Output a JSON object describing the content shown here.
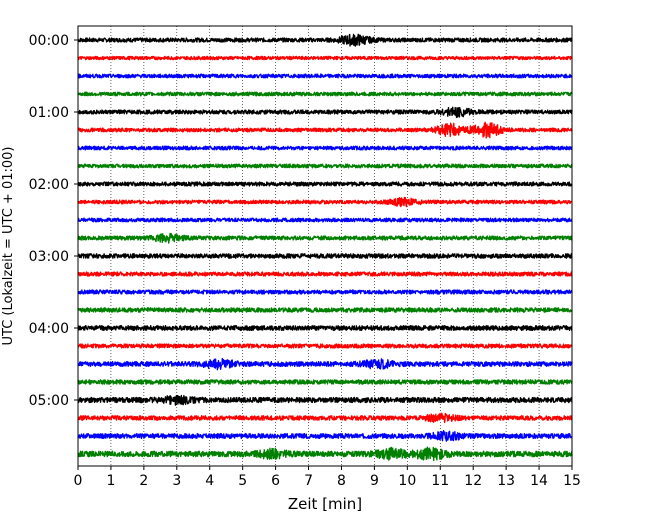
{
  "chart_data": {
    "type": "line",
    "title": "",
    "xlabel": "Zeit  [min]",
    "ylabel": "UTC (Lokalzeit = UTC + 01:00)",
    "xlim": [
      0,
      15
    ],
    "x_ticks": [
      "0",
      "1",
      "2",
      "3",
      "4",
      "5",
      "6",
      "7",
      "8",
      "9",
      "10",
      "11",
      "12",
      "13",
      "14",
      "15"
    ],
    "y_tick_labels": [
      "00:00",
      "01:00",
      "02:00",
      "03:00",
      "04:00",
      "05:00"
    ],
    "grid": "vertical dotted",
    "colors": [
      "#000000",
      "#ff0000",
      "#0000ff",
      "#008000"
    ],
    "series": [
      {
        "row_time": "00:00",
        "color": "#000000",
        "amplitude": 0.22,
        "bursts": [
          {
            "t": 8.4,
            "a": 0.5
          }
        ]
      },
      {
        "row_time": "00:15",
        "color": "#ff0000",
        "amplitude": 0.18,
        "bursts": []
      },
      {
        "row_time": "00:30",
        "color": "#0000ff",
        "amplitude": 0.2,
        "bursts": []
      },
      {
        "row_time": "00:45",
        "color": "#008000",
        "amplitude": 0.2,
        "bursts": []
      },
      {
        "row_time": "01:00",
        "color": "#000000",
        "amplitude": 0.22,
        "bursts": [
          {
            "t": 11.5,
            "a": 0.4
          }
        ]
      },
      {
        "row_time": "01:15",
        "color": "#ff0000",
        "amplitude": 0.2,
        "bursts": [
          {
            "t": 11.3,
            "a": 0.6
          },
          {
            "t": 12.4,
            "a": 0.7
          }
        ]
      },
      {
        "row_time": "01:30",
        "color": "#0000ff",
        "amplitude": 0.2,
        "bursts": []
      },
      {
        "row_time": "01:45",
        "color": "#008000",
        "amplitude": 0.2,
        "bursts": []
      },
      {
        "row_time": "02:00",
        "color": "#000000",
        "amplitude": 0.22,
        "bursts": []
      },
      {
        "row_time": "02:15",
        "color": "#ff0000",
        "amplitude": 0.2,
        "bursts": [
          {
            "t": 9.9,
            "a": 0.35
          }
        ]
      },
      {
        "row_time": "02:30",
        "color": "#0000ff",
        "amplitude": 0.2,
        "bursts": []
      },
      {
        "row_time": "02:45",
        "color": "#008000",
        "amplitude": 0.22,
        "bursts": [
          {
            "t": 2.7,
            "a": 0.35
          }
        ]
      },
      {
        "row_time": "03:00",
        "color": "#000000",
        "amplitude": 0.24,
        "bursts": []
      },
      {
        "row_time": "03:15",
        "color": "#ff0000",
        "amplitude": 0.22,
        "bursts": []
      },
      {
        "row_time": "03:30",
        "color": "#0000ff",
        "amplitude": 0.22,
        "bursts": []
      },
      {
        "row_time": "03:45",
        "color": "#008000",
        "amplitude": 0.24,
        "bursts": []
      },
      {
        "row_time": "04:00",
        "color": "#000000",
        "amplitude": 0.26,
        "bursts": []
      },
      {
        "row_time": "04:15",
        "color": "#ff0000",
        "amplitude": 0.22,
        "bursts": []
      },
      {
        "row_time": "04:30",
        "color": "#0000ff",
        "amplitude": 0.26,
        "bursts": [
          {
            "t": 4.3,
            "a": 0.4
          },
          {
            "t": 9.1,
            "a": 0.35
          }
        ]
      },
      {
        "row_time": "04:45",
        "color": "#008000",
        "amplitude": 0.24,
        "bursts": []
      },
      {
        "row_time": "05:00",
        "color": "#000000",
        "amplitude": 0.28,
        "bursts": [
          {
            "t": 3.0,
            "a": 0.3
          }
        ]
      },
      {
        "row_time": "05:15",
        "color": "#ff0000",
        "amplitude": 0.24,
        "bursts": [
          {
            "t": 11.0,
            "a": 0.3
          }
        ]
      },
      {
        "row_time": "05:30",
        "color": "#0000ff",
        "amplitude": 0.26,
        "bursts": [
          {
            "t": 11.2,
            "a": 0.35
          }
        ]
      },
      {
        "row_time": "05:45",
        "color": "#008000",
        "amplitude": 0.3,
        "bursts": [
          {
            "t": 5.9,
            "a": 0.35
          },
          {
            "t": 9.5,
            "a": 0.45
          },
          {
            "t": 10.7,
            "a": 0.5
          }
        ]
      }
    ]
  }
}
